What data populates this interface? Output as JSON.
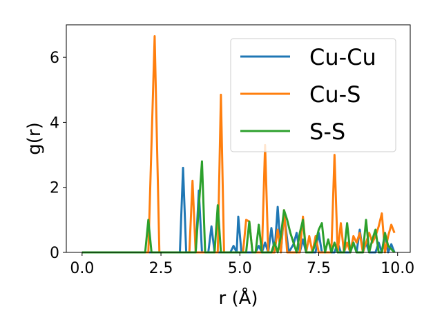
{
  "chart_data": {
    "type": "line",
    "xlabel": "r (Å)",
    "ylabel": "g(r)",
    "xlim": [
      -0.5,
      10.4
    ],
    "ylim": [
      0,
      7.0
    ],
    "xticks": [
      0.0,
      2.5,
      5.0,
      7.5,
      10.0
    ],
    "xtick_labels": [
      "0.0",
      "2.5",
      "5.0",
      "7.5",
      "10.0"
    ],
    "yticks": [
      0,
      2,
      4,
      6
    ],
    "ytick_labels": [
      "0",
      "2",
      "4",
      "6"
    ],
    "grid": false,
    "legend_position": "top-right",
    "series": [
      {
        "name": "Cu-Cu",
        "color": "#1f77b4",
        "points": [
          [
            0.0,
            0
          ],
          [
            3.1,
            0
          ],
          [
            3.2,
            2.6
          ],
          [
            3.3,
            0
          ],
          [
            3.6,
            0
          ],
          [
            3.7,
            1.9
          ],
          [
            3.8,
            0
          ],
          [
            4.0,
            0
          ],
          [
            4.1,
            0.8
          ],
          [
            4.2,
            0
          ],
          [
            4.7,
            0
          ],
          [
            4.8,
            0.2
          ],
          [
            4.9,
            0
          ],
          [
            4.95,
            1.1
          ],
          [
            5.05,
            0
          ],
          [
            5.5,
            0
          ],
          [
            5.6,
            0.2
          ],
          [
            5.7,
            0
          ],
          [
            5.8,
            0.3
          ],
          [
            5.9,
            0
          ],
          [
            6.0,
            0.75
          ],
          [
            6.1,
            0
          ],
          [
            6.2,
            1.4
          ],
          [
            6.3,
            0
          ],
          [
            6.4,
            1.2
          ],
          [
            6.55,
            0
          ],
          [
            6.7,
            0.25
          ],
          [
            6.8,
            0.6
          ],
          [
            6.9,
            0
          ],
          [
            7.0,
            0.4
          ],
          [
            7.1,
            0
          ],
          [
            7.4,
            0
          ],
          [
            7.5,
            0.6
          ],
          [
            7.6,
            0
          ],
          [
            8.0,
            0
          ],
          [
            8.1,
            0.3
          ],
          [
            8.2,
            0
          ],
          [
            8.5,
            0
          ],
          [
            8.6,
            0.3
          ],
          [
            8.7,
            0
          ],
          [
            8.8,
            0.7
          ],
          [
            8.9,
            0
          ],
          [
            9.0,
            0.3
          ],
          [
            9.1,
            0
          ],
          [
            9.3,
            0
          ],
          [
            9.4,
            0.3
          ],
          [
            9.5,
            0
          ],
          [
            9.6,
            0.6
          ],
          [
            9.7,
            0
          ],
          [
            9.8,
            0.25
          ],
          [
            9.9,
            0
          ]
        ]
      },
      {
        "name": "Cu-S",
        "color": "#ff7f0e",
        "points": [
          [
            0.0,
            0
          ],
          [
            2.1,
            0
          ],
          [
            2.3,
            6.65
          ],
          [
            2.45,
            0
          ],
          [
            3.4,
            0
          ],
          [
            3.5,
            2.2
          ],
          [
            3.6,
            0
          ],
          [
            4.3,
            0
          ],
          [
            4.4,
            4.85
          ],
          [
            4.5,
            0
          ],
          [
            5.1,
            0
          ],
          [
            5.2,
            1.0
          ],
          [
            5.3,
            0.95
          ],
          [
            5.4,
            0
          ],
          [
            5.7,
            0
          ],
          [
            5.8,
            3.3
          ],
          [
            5.9,
            0
          ],
          [
            6.1,
            0
          ],
          [
            6.2,
            0.7
          ],
          [
            6.3,
            0
          ],
          [
            6.4,
            1.3
          ],
          [
            6.5,
            0
          ],
          [
            6.9,
            0
          ],
          [
            7.0,
            1.1
          ],
          [
            7.1,
            0
          ],
          [
            7.2,
            0.5
          ],
          [
            7.3,
            0
          ],
          [
            7.4,
            0.5
          ],
          [
            7.5,
            0
          ],
          [
            7.9,
            0
          ],
          [
            8.0,
            3.0
          ],
          [
            8.1,
            0
          ],
          [
            8.2,
            0.9
          ],
          [
            8.3,
            0
          ],
          [
            8.4,
            0.3
          ],
          [
            8.5,
            0
          ],
          [
            8.6,
            0.5
          ],
          [
            8.7,
            0.3
          ],
          [
            8.8,
            0.6
          ],
          [
            8.9,
            0
          ],
          [
            9.1,
            0.6
          ],
          [
            9.2,
            0.3
          ],
          [
            9.3,
            0.5
          ],
          [
            9.4,
            0.8
          ],
          [
            9.5,
            1.2
          ],
          [
            9.6,
            0
          ],
          [
            9.7,
            0.5
          ],
          [
            9.8,
            0.85
          ],
          [
            9.9,
            0.6
          ]
        ]
      },
      {
        "name": "S-S",
        "color": "#2ca02c",
        "points": [
          [
            0.0,
            0
          ],
          [
            2.0,
            0
          ],
          [
            2.1,
            1.0
          ],
          [
            2.2,
            0
          ],
          [
            3.6,
            0
          ],
          [
            3.7,
            1.4
          ],
          [
            3.8,
            2.8
          ],
          [
            3.9,
            0
          ],
          [
            4.2,
            0
          ],
          [
            4.3,
            1.45
          ],
          [
            4.4,
            0
          ],
          [
            5.2,
            0
          ],
          [
            5.3,
            0.95
          ],
          [
            5.4,
            0
          ],
          [
            5.5,
            0
          ],
          [
            5.6,
            0.85
          ],
          [
            5.7,
            0
          ],
          [
            6.0,
            0
          ],
          [
            6.1,
            0.3
          ],
          [
            6.2,
            0
          ],
          [
            6.3,
            0.5
          ],
          [
            6.4,
            1.3
          ],
          [
            6.5,
            1.0
          ],
          [
            6.6,
            0.6
          ],
          [
            6.7,
            0.3
          ],
          [
            6.8,
            0
          ],
          [
            6.9,
            0.6
          ],
          [
            7.0,
            1.0
          ],
          [
            7.1,
            0
          ],
          [
            7.3,
            0
          ],
          [
            7.4,
            0.3
          ],
          [
            7.5,
            0.7
          ],
          [
            7.6,
            0.9
          ],
          [
            7.7,
            0
          ],
          [
            7.8,
            0.4
          ],
          [
            7.9,
            0
          ],
          [
            8.0,
            0.3
          ],
          [
            8.1,
            0
          ],
          [
            8.3,
            0
          ],
          [
            8.4,
            0.9
          ],
          [
            8.5,
            0
          ],
          [
            8.6,
            0.3
          ],
          [
            8.7,
            0
          ],
          [
            8.9,
            0
          ],
          [
            9.0,
            1.0
          ],
          [
            9.1,
            0
          ],
          [
            9.2,
            0.4
          ],
          [
            9.3,
            0.7
          ],
          [
            9.4,
            0
          ],
          [
            9.5,
            0
          ],
          [
            9.6,
            0.6
          ],
          [
            9.7,
            0.2
          ],
          [
            9.8,
            0.1
          ],
          [
            9.9,
            0
          ]
        ]
      }
    ]
  }
}
